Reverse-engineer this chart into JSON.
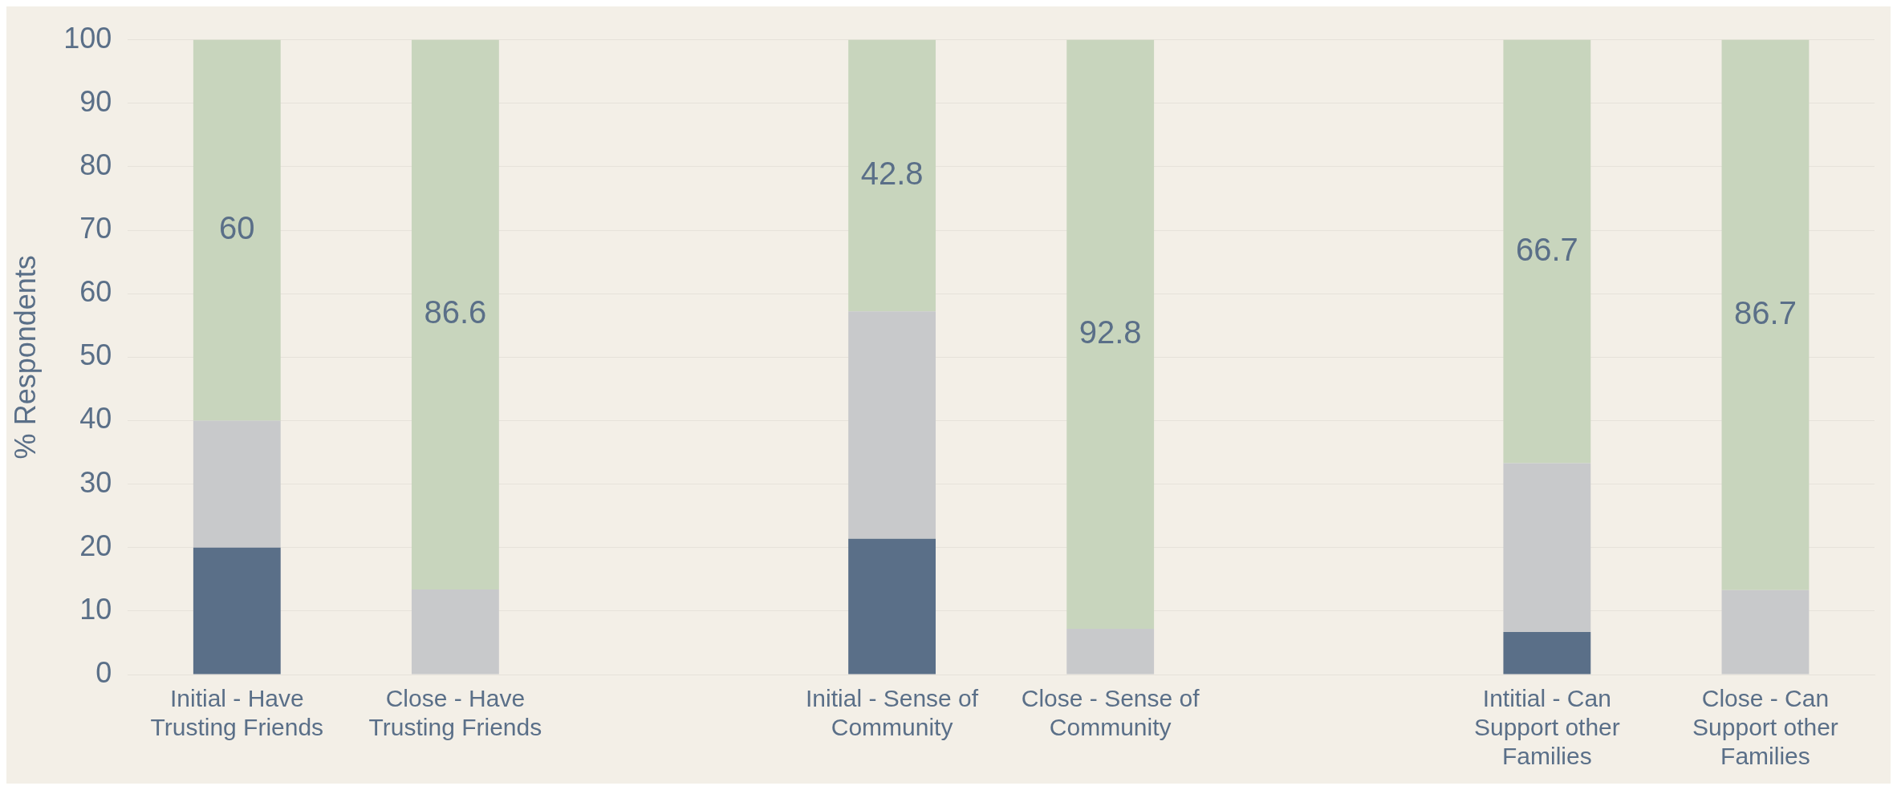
{
  "chart_data": {
    "type": "bar",
    "stacked": true,
    "ylabel": "% Respondents",
    "categories": [
      "Initial - Have Trusting Friends",
      "Close - Have Trusting Friends",
      null,
      "Initial - Sense of Community",
      "Close - Sense of Community",
      null,
      "Intitial - Can Support other Families",
      "Close - Can Support other Families"
    ],
    "series": [
      {
        "color": "#5a6f88",
        "values": [
          20,
          0,
          null,
          21.4,
          0,
          null,
          6.7,
          0
        ]
      },
      {
        "color": "#c8c9cb",
        "values": [
          20,
          13.4,
          null,
          35.8,
          7.2,
          null,
          26.6,
          13.3
        ]
      },
      {
        "color": "#c8d5bd",
        "values": [
          60,
          86.6,
          null,
          42.8,
          92.8,
          null,
          66.7,
          86.7
        ],
        "value_labels": [
          "60",
          "86.6",
          null,
          "42.8",
          "92.8",
          null,
          "66.7",
          "86.7"
        ]
      }
    ],
    "ylim": [
      0,
      100
    ],
    "yticks": [
      0,
      10,
      20,
      30,
      40,
      50,
      60,
      70,
      80,
      90,
      100
    ],
    "grid": "y",
    "legend": false
  }
}
